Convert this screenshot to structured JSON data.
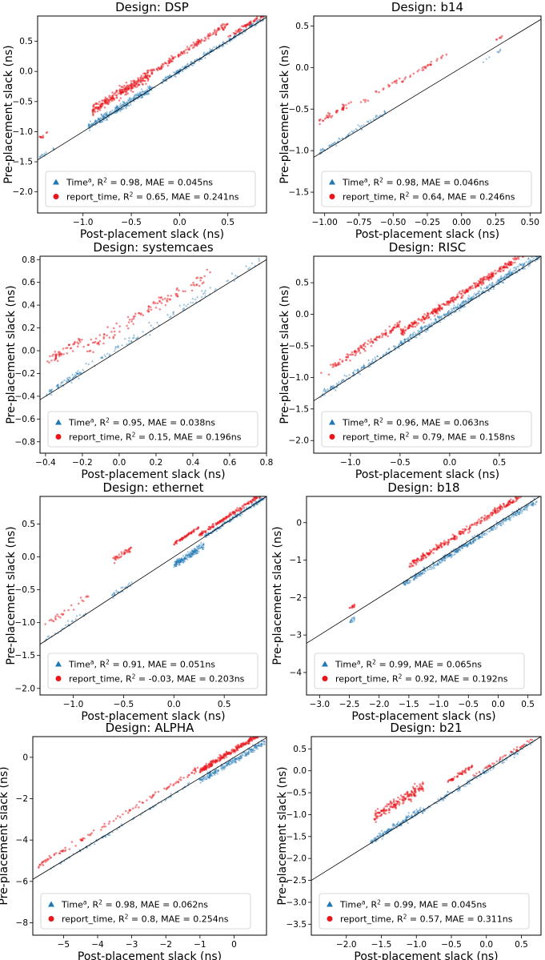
{
  "figure": {
    "legend_series": [
      {
        "name": "Time^a",
        "marker": "triangle",
        "color": "#1f77b4"
      },
      {
        "name": "report_time",
        "marker": "circle",
        "color": "#e8161b"
      }
    ],
    "xlabel": "Post-placement slack (ns)",
    "ylabel": "Pre-placement slack (ns)",
    "reference_line": "y = x"
  },
  "chart_data": [
    {
      "type": "scatter",
      "title": "Design: DSP",
      "xlabel": "Post-placement slack (ns)",
      "ylabel": "Pre-placement slack (ns)",
      "xlim": [
        -1.47,
        0.9
      ],
      "ylim": [
        -2.35,
        0.92
      ],
      "xticks": [
        -1.0,
        -0.5,
        0.0,
        0.5
      ],
      "xticklabels": [
        "−1.0",
        "−0.5",
        "0.0",
        "0.5"
      ],
      "yticks": [
        -2.0,
        -1.5,
        -1.0,
        -0.5,
        0.0,
        0.5
      ],
      "yticklabels": [
        "−2.0",
        "−1.5",
        "−1.0",
        "−0.5",
        "0.0",
        "0.5"
      ],
      "legend": [
        "Time^a, R^2 = 0.98, MAE = 0.045ns",
        "report_time, R^2 = 0.65, MAE = 0.241ns"
      ],
      "series": [
        {
          "name": "Time^a",
          "color": "#1f77b4",
          "clusters": [
            {
              "x": [
                -1.45,
                -1.3
              ],
              "bias": 0.02,
              "spread": 0.03,
              "count": 12
            },
            {
              "x": [
                -0.95,
                -0.3
              ],
              "bias": 0.02,
              "spread": 0.07,
              "count": 260
            },
            {
              "x": [
                -0.3,
                0.88
              ],
              "bias": 0.01,
              "spread": 0.04,
              "count": 220
            }
          ]
        },
        {
          "name": "report_time",
          "color": "#e8161b",
          "clusters": [
            {
              "x": [
                -1.45,
                -1.35
              ],
              "bias": 0.35,
              "spread": 0.03,
              "count": 10
            },
            {
              "x": [
                -0.9,
                -0.3
              ],
              "bias": 0.26,
              "spread": 0.09,
              "count": 260
            },
            {
              "x": [
                -0.3,
                0.5
              ],
              "bias": 0.28,
              "spread": 0.05,
              "count": 140
            },
            {
              "x": [
                0.5,
                0.88
              ],
              "bias": 0.07,
              "spread": 0.04,
              "count": 60
            }
          ]
        }
      ]
    },
    {
      "type": "scatter",
      "title": "Design: b14",
      "xlabel": "Post-placement slack (ns)",
      "ylabel": "Pre-placement slack (ns)",
      "xlim": [
        -1.08,
        0.58
      ],
      "ylim": [
        -1.75,
        0.62
      ],
      "xticks": [
        -1.0,
        -0.75,
        -0.5,
        -0.25,
        0.0,
        0.25,
        0.5
      ],
      "xticklabels": [
        "−1.00",
        "−0.75",
        "−0.50",
        "−0.25",
        "0.00",
        "0.25",
        "0.50"
      ],
      "yticks": [
        -1.5,
        -1.0,
        -0.5,
        0.0,
        0.5
      ],
      "yticklabels": [
        "−1.5",
        "−1.0",
        "−0.5",
        "0.0",
        "0.5"
      ],
      "legend": [
        "Time^a, R^2 = 0.98, MAE = 0.046ns",
        "report_time, R^2 = 0.64, MAE = 0.246ns"
      ],
      "series": [
        {
          "name": "Time^a",
          "color": "#1f77b4",
          "clusters": [
            {
              "x": [
                -1.05,
                -0.55
              ],
              "bias": 0.02,
              "spread": 0.03,
              "count": 70
            },
            {
              "x": [
                0.15,
                0.3
              ],
              "bias": -0.08,
              "spread": 0.02,
              "count": 8
            }
          ]
        },
        {
          "name": "report_time",
          "color": "#e8161b",
          "clusters": [
            {
              "x": [
                -1.05,
                -0.8
              ],
              "bias": 0.38,
              "spread": 0.04,
              "count": 40
            },
            {
              "x": [
                -0.75,
                -0.45
              ],
              "bias": 0.32,
              "spread": 0.03,
              "count": 20
            },
            {
              "x": [
                -0.45,
                -0.1
              ],
              "bias": 0.27,
              "spread": 0.02,
              "count": 30
            },
            {
              "x": [
                0.25,
                0.3
              ],
              "bias": 0.08,
              "spread": 0.01,
              "count": 6
            }
          ]
        }
      ]
    },
    {
      "type": "scatter",
      "title": "Design: systemcaes",
      "xlabel": "Post-placement slack (ns)",
      "ylabel": "Pre-placement slack (ns)",
      "xlim": [
        -0.43,
        0.8
      ],
      "ylim": [
        -0.9,
        0.83
      ],
      "xticks": [
        -0.4,
        -0.2,
        0.0,
        0.2,
        0.4,
        0.6,
        0.8
      ],
      "xticklabels": [
        "−0.4",
        "−0.2",
        "0.0",
        "0.2",
        "0.4",
        "0.6",
        "0.8"
      ],
      "yticks": [
        -0.8,
        -0.6,
        -0.4,
        -0.2,
        0.0,
        0.2,
        0.4,
        0.6,
        0.8
      ],
      "yticklabels": [
        "−0.8",
        "−0.6",
        "−0.4",
        "−0.2",
        "0.0",
        "0.2",
        "0.4",
        "0.6",
        "0.8"
      ],
      "legend": [
        "Time^a, R^2 = 0.95, MAE = 0.038ns",
        "report_time, R^2 = 0.15, MAE = 0.196ns"
      ],
      "series": [
        {
          "name": "Time^a",
          "color": "#1f77b4",
          "clusters": [
            {
              "x": [
                -0.4,
                -0.2
              ],
              "bias": 0.02,
              "spread": 0.03,
              "count": 60
            },
            {
              "x": [
                -0.2,
                0.78
              ],
              "bias": 0.03,
              "spread": 0.04,
              "count": 90
            }
          ]
        },
        {
          "name": "report_time",
          "color": "#e8161b",
          "clusters": [
            {
              "x": [
                -0.4,
                -0.2
              ],
              "bias": 0.3,
              "spread": 0.04,
              "count": 50
            },
            {
              "x": [
                -0.2,
                0.5
              ],
              "bias": 0.2,
              "spread": 0.06,
              "count": 110
            }
          ]
        }
      ]
    },
    {
      "type": "scatter",
      "title": "Design: RISC",
      "xlabel": "Post-placement slack (ns)",
      "ylabel": "Pre-placement slack (ns)",
      "xlim": [
        -1.37,
        0.92
      ],
      "ylim": [
        -2.2,
        0.92
      ],
      "xticks": [
        -1.0,
        -0.5,
        0.0,
        0.5
      ],
      "xticklabels": [
        "−1.0",
        "−0.5",
        "0.0",
        "0.5"
      ],
      "yticks": [
        -2.0,
        -1.5,
        -1.0,
        -0.5,
        0.0,
        0.5
      ],
      "yticklabels": [
        "−2.0",
        "−1.5",
        "−1.0",
        "−0.5",
        "0.0",
        "0.5"
      ],
      "legend": [
        "Time^a, R^2 = 0.96, MAE = 0.063ns",
        "report_time, R^2 = 0.79, MAE = 0.158ns"
      ],
      "series": [
        {
          "name": "Time^a",
          "color": "#1f77b4",
          "clusters": [
            {
              "x": [
                -1.3,
                -0.5
              ],
              "bias": 0.02,
              "spread": 0.05,
              "count": 120
            },
            {
              "x": [
                -0.5,
                0.9
              ],
              "bias": 0.03,
              "spread": 0.06,
              "count": 380
            }
          ]
        },
        {
          "name": "report_time",
          "color": "#e8161b",
          "clusters": [
            {
              "x": [
                -1.3,
                -0.5
              ],
              "bias": 0.35,
              "spread": 0.06,
              "count": 120
            },
            {
              "x": [
                -0.5,
                0.9
              ],
              "bias": 0.2,
              "spread": 0.05,
              "count": 380
            }
          ]
        }
      ]
    },
    {
      "type": "scatter",
      "title": "Design: ethernet",
      "xlabel": "Post-placement slack (ns)",
      "ylabel": "Pre-placement slack (ns)",
      "xlim": [
        -1.33,
        0.92
      ],
      "ylim": [
        -2.1,
        0.92
      ],
      "xticks": [
        -1.0,
        -0.5,
        0.0,
        0.5
      ],
      "xticklabels": [
        "−1.0",
        "−0.5",
        "0.0",
        "0.5"
      ],
      "yticks": [
        -2.0,
        -1.5,
        -1.0,
        -0.5,
        0.0,
        0.5
      ],
      "yticklabels": [
        "−2.0",
        "−1.5",
        "−1.0",
        "−0.5",
        "0.0",
        "0.5"
      ],
      "legend": [
        "Time^a, R^2 = 0.91, MAE = 0.051ns",
        "report_time, R^2 = -0.03, MAE = 0.203ns"
      ],
      "series": [
        {
          "name": "Time^a",
          "color": "#1f77b4",
          "clusters": [
            {
              "x": [
                -1.3,
                -0.85
              ],
              "bias": 0.03,
              "spread": 0.04,
              "count": 25
            },
            {
              "x": [
                -0.62,
                -0.4
              ],
              "bias": 0.02,
              "spread": 0.04,
              "count": 25
            },
            {
              "x": [
                0.0,
                0.3
              ],
              "bias": -0.12,
              "spread": 0.05,
              "count": 180
            },
            {
              "x": [
                0.3,
                0.9
              ],
              "bias": 0.0,
              "spread": 0.03,
              "count": 160
            }
          ]
        },
        {
          "name": "report_time",
          "color": "#e8161b",
          "clusters": [
            {
              "x": [
                -1.3,
                -0.85
              ],
              "bias": 0.25,
              "spread": 0.05,
              "count": 25
            },
            {
              "x": [
                -0.62,
                -0.4
              ],
              "bias": 0.55,
              "spread": 0.05,
              "count": 35
            },
            {
              "x": [
                0.0,
                0.25
              ],
              "bias": 0.2,
              "spread": 0.02,
              "count": 60
            },
            {
              "x": [
                0.25,
                0.9
              ],
              "bias": 0.08,
              "spread": 0.03,
              "count": 150
            }
          ]
        }
      ]
    },
    {
      "type": "scatter",
      "title": "Design: b18",
      "xlabel": "Post-placement slack (ns)",
      "ylabel": "Pre-placement slack (ns)",
      "xlim": [
        -3.22,
        0.72
      ],
      "ylim": [
        -4.6,
        0.7
      ],
      "xticks": [
        -3.0,
        -2.5,
        -2.0,
        -1.5,
        -1.0,
        -0.5,
        0.0,
        0.5
      ],
      "xticklabels": [
        "−3.0",
        "−2.5",
        "−2.0",
        "−1.5",
        "−1.0",
        "−0.5",
        "0.0",
        "0.5"
      ],
      "yticks": [
        -4,
        -3,
        -2,
        -1,
        0
      ],
      "yticklabels": [
        "−4",
        "−3",
        "−2",
        "−1",
        "0"
      ],
      "legend": [
        "Time^a, R^2 = 0.99, MAE = 0.065ns",
        "report_time, R^2 = 0.92, MAE = 0.192ns"
      ],
      "series": [
        {
          "name": "Time^a",
          "color": "#1f77b4",
          "clusters": [
            {
              "x": [
                -2.5,
                -2.4
              ],
              "bias": -0.15,
              "spread": 0.05,
              "count": 15
            },
            {
              "x": [
                -1.6,
                0.65
              ],
              "bias": -0.05,
              "spread": 0.08,
              "count": 380
            }
          ]
        },
        {
          "name": "report_time",
          "color": "#e8161b",
          "clusters": [
            {
              "x": [
                -2.5,
                -2.4
              ],
              "bias": 0.2,
              "spread": 0.04,
              "count": 12
            },
            {
              "x": [
                -1.5,
                0.65
              ],
              "bias": 0.35,
              "spread": 0.08,
              "count": 320
            }
          ]
        }
      ]
    },
    {
      "type": "scatter",
      "title": "Design: ALPHA",
      "xlabel": "Post-placement slack (ns)",
      "ylabel": "Pre-placement slack (ns)",
      "xlim": [
        -5.9,
        0.95
      ],
      "ylim": [
        -8.6,
        1.0
      ],
      "xticks": [
        -5,
        -4,
        -3,
        -2,
        -1,
        0
      ],
      "xticklabels": [
        "−5",
        "−4",
        "−3",
        "−2",
        "−1",
        "0"
      ],
      "yticks": [
        -8,
        -6,
        -4,
        -2,
        0
      ],
      "yticklabels": [
        "−8",
        "−6",
        "−4",
        "−2",
        "0"
      ],
      "legend": [
        "Time^a, R^2 = 0.98, MAE = 0.062ns",
        "report_time, R^2 = 0.8, MAE = 0.254ns"
      ],
      "series": [
        {
          "name": "Time^a",
          "color": "#1f77b4",
          "clusters": [
            {
              "x": [
                -5.5,
                -1.0
              ],
              "bias": 0.0,
              "spread": 0.08,
              "count": 80
            },
            {
              "x": [
                -1.0,
                0.9
              ],
              "bias": -0.15,
              "spread": 0.15,
              "count": 220
            }
          ]
        },
        {
          "name": "report_time",
          "color": "#e8161b",
          "clusters": [
            {
              "x": [
                -5.8,
                -1.0
              ],
              "bias": 0.5,
              "spread": 0.12,
              "count": 110
            },
            {
              "x": [
                -1.0,
                0.9
              ],
              "bias": 0.35,
              "spread": 0.12,
              "count": 260
            }
          ]
        }
      ]
    },
    {
      "type": "scatter",
      "title": "Design: b21",
      "xlabel": "Post-placement slack (ns)",
      "ylabel": "Pre-placement slack (ns)",
      "xlim": [
        -2.5,
        0.78
      ],
      "ylim": [
        -3.75,
        0.78
      ],
      "xticks": [
        -2.0,
        -1.5,
        -1.0,
        -0.5,
        0.0,
        0.5
      ],
      "xticklabels": [
        "−2.0",
        "−1.5",
        "−1.0",
        "−0.5",
        "0.0",
        "0.5"
      ],
      "yticks": [
        -3.5,
        -3.0,
        -2.5,
        -2.0,
        -1.5,
        -1.0,
        -0.5,
        0.0,
        0.5
      ],
      "yticklabels": [
        "−3.5",
        "−3.0",
        "−2.5",
        "−2.0",
        "−1.5",
        "−1.0",
        "−0.5",
        "0.0",
        "0.5"
      ],
      "legend": [
        "Time^a, R^2 = 0.99, MAE = 0.045ns",
        "report_time, R^2 = 0.57, MAE = 0.311ns"
      ],
      "series": [
        {
          "name": "Time^a",
          "color": "#1f77b4",
          "clusters": [
            {
              "x": [
                -1.65,
                -0.9
              ],
              "bias": 0.03,
              "spread": 0.08,
              "count": 150
            },
            {
              "x": [
                -0.9,
                0.7
              ],
              "bias": 0.0,
              "spread": 0.06,
              "count": 120
            }
          ]
        },
        {
          "name": "report_time",
          "color": "#e8161b",
          "clusters": [
            {
              "x": [
                -1.6,
                -0.9
              ],
              "bias": 0.55,
              "spread": 0.12,
              "count": 170
            },
            {
              "x": [
                -0.55,
                -0.2
              ],
              "bias": 0.3,
              "spread": 0.05,
              "count": 50
            },
            {
              "x": [
                -0.2,
                0.7
              ],
              "bias": 0.07,
              "spread": 0.04,
              "count": 40
            }
          ]
        }
      ]
    }
  ]
}
